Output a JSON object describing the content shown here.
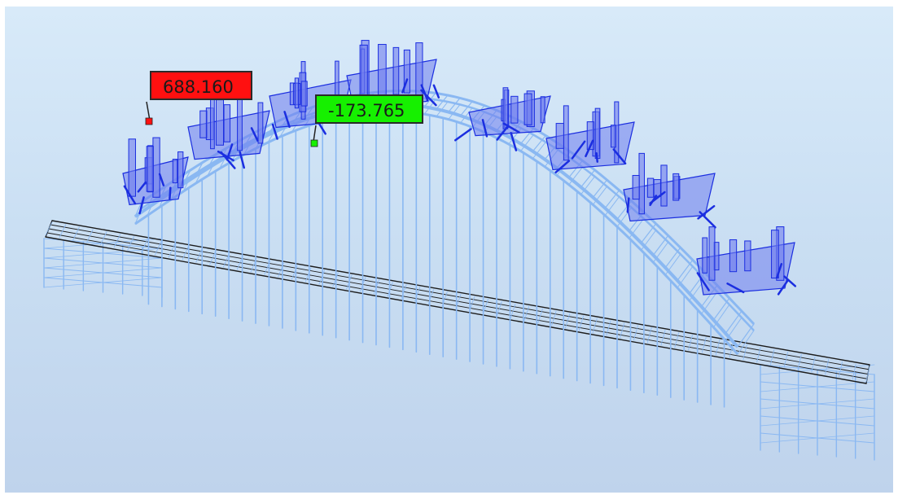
{
  "viewport": {
    "background_top": "#d8eaf9",
    "background_bottom": "#bfd3ec"
  },
  "colors": {
    "structure": "#8ab8f2",
    "deck_edge": "#1c1c1c",
    "diagram_fill": "#6f7dee",
    "diagram_stroke": "#1b2ee0"
  },
  "annotations": {
    "max": {
      "value": "688.160",
      "color": "#ff1010"
    },
    "min": {
      "value": "-173.765",
      "color": "#16f000"
    }
  }
}
